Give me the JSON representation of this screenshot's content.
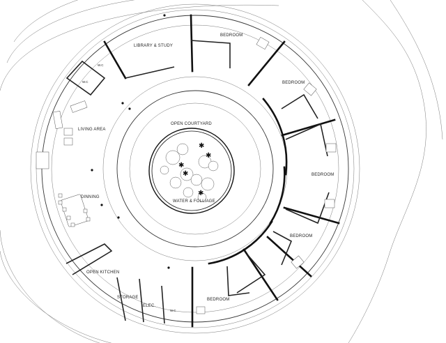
{
  "plan": {
    "rooms": {
      "library": "LIBRARY & STUDY",
      "bedroom_1": "BEDROOM",
      "bedroom_2": "BEDROOM",
      "bedroom_3": "BEDROOM",
      "bedroom_4": "BEDROOM",
      "bedroom_5": "BEDROOM",
      "wc_top_1": "W.C",
      "wc_top_2": "W.C",
      "living": "LIVING AREA",
      "dining": "DINNING",
      "kitchen": "OPEN KITCHEN",
      "storage": "STORAGE",
      "elec": "ELEC.",
      "wc_bottom": "W.C"
    },
    "courtyard": {
      "title": "OPEN COURTYARD",
      "center": "WATER & FOLLIAGE"
    }
  }
}
